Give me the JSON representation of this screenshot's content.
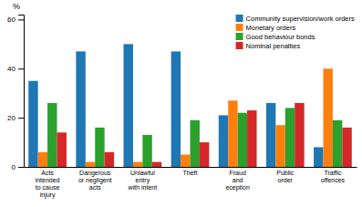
{
  "chart_data": {
    "type": "bar",
    "ylabel": "%",
    "categories": [
      "Acts\nintended\nto cause\ninjury",
      "Dangerous\nor negligent\nacts",
      "Unlawful\nentry\nwith intent",
      "Theft",
      "Fraud\nand\neception",
      "Public\norder",
      "Traffic\noffences"
    ],
    "series": [
      {
        "name": "Community supervision/work orders",
        "values": [
          35,
          47,
          50,
          47,
          21,
          26,
          8
        ]
      },
      {
        "name": "Monetary orders",
        "values": [
          6,
          2,
          2,
          5,
          27,
          17,
          40
        ]
      },
      {
        "name": "Good behaviour bonds",
        "values": [
          26,
          16,
          13,
          19,
          22,
          24,
          19
        ]
      },
      {
        "name": "Nominal penalties",
        "values": [
          14,
          6,
          2,
          10,
          23,
          26,
          16
        ]
      }
    ],
    "ylim": [
      0,
      62
    ],
    "yticks": [
      0,
      20,
      40,
      60
    ],
    "grid": false,
    "legend": "upper-right"
  }
}
